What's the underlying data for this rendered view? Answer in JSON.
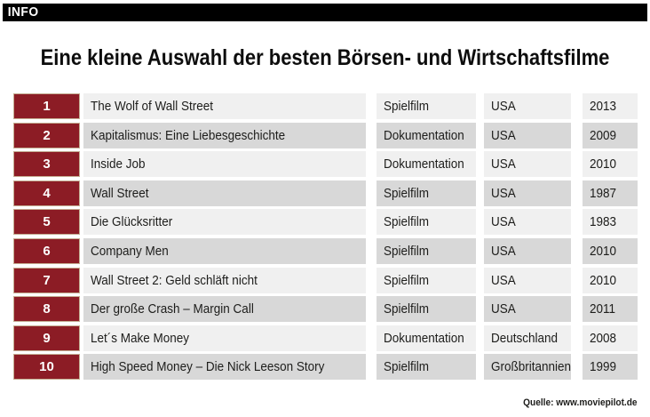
{
  "page": {
    "badge": "INFO",
    "title": "Eine kleine Auswahl der besten Börsen- und Wirtschaftsfilme",
    "source": "Quelle: www.moviepilot.de"
  },
  "colors": {
    "accent_red": "#8c1c25",
    "rank_cell_border": "#c4ad92",
    "row_light": "#f0f0f0",
    "row_dark": "#d8d8d8",
    "top_bar": "#000000",
    "text": "#1d1d1b"
  },
  "chart_data": {
    "type": "table",
    "title": "Eine kleine Auswahl der besten Börsen- und Wirtschaftsfilme",
    "legend_position": "none",
    "grid": false,
    "rows": [
      {
        "rank": "1",
        "film": "The Wolf of Wall Street",
        "category": "Spielfilm",
        "country": "USA",
        "year": "2013"
      },
      {
        "rank": "2",
        "film": "Kapitalismus: Eine Liebesgeschichte",
        "category": "Dokumentation",
        "country": "USA",
        "year": "2009"
      },
      {
        "rank": "3",
        "film": "Inside Job",
        "category": "Dokumentation",
        "country": "USA",
        "year": "2010"
      },
      {
        "rank": "4",
        "film": "Wall Street",
        "category": "Spielfilm",
        "country": "USA",
        "year": "1987"
      },
      {
        "rank": "5",
        "film": "Die Glücksritter",
        "category": "Spielfilm",
        "country": "USA",
        "year": "1983"
      },
      {
        "rank": "6",
        "film": "Company Men",
        "category": "Spielfilm",
        "country": "USA",
        "year": "2010"
      },
      {
        "rank": "7",
        "film": "Wall Street 2: Geld schläft nicht",
        "category": "Spielfilm",
        "country": "USA",
        "year": "2010"
      },
      {
        "rank": "8",
        "film": "Der große Crash – Margin Call",
        "category": "Spielfilm",
        "country": "USA",
        "year": "2011"
      },
      {
        "rank": "9",
        "film": "Let´s Make Money",
        "category": "Dokumentation",
        "country": "Deutschland",
        "year": "2008"
      },
      {
        "rank": "10",
        "film": "High Speed Money – Die Nick Leeson Story",
        "category": "Spielfilm",
        "country": "Großbritannien",
        "year": "1999"
      }
    ]
  }
}
